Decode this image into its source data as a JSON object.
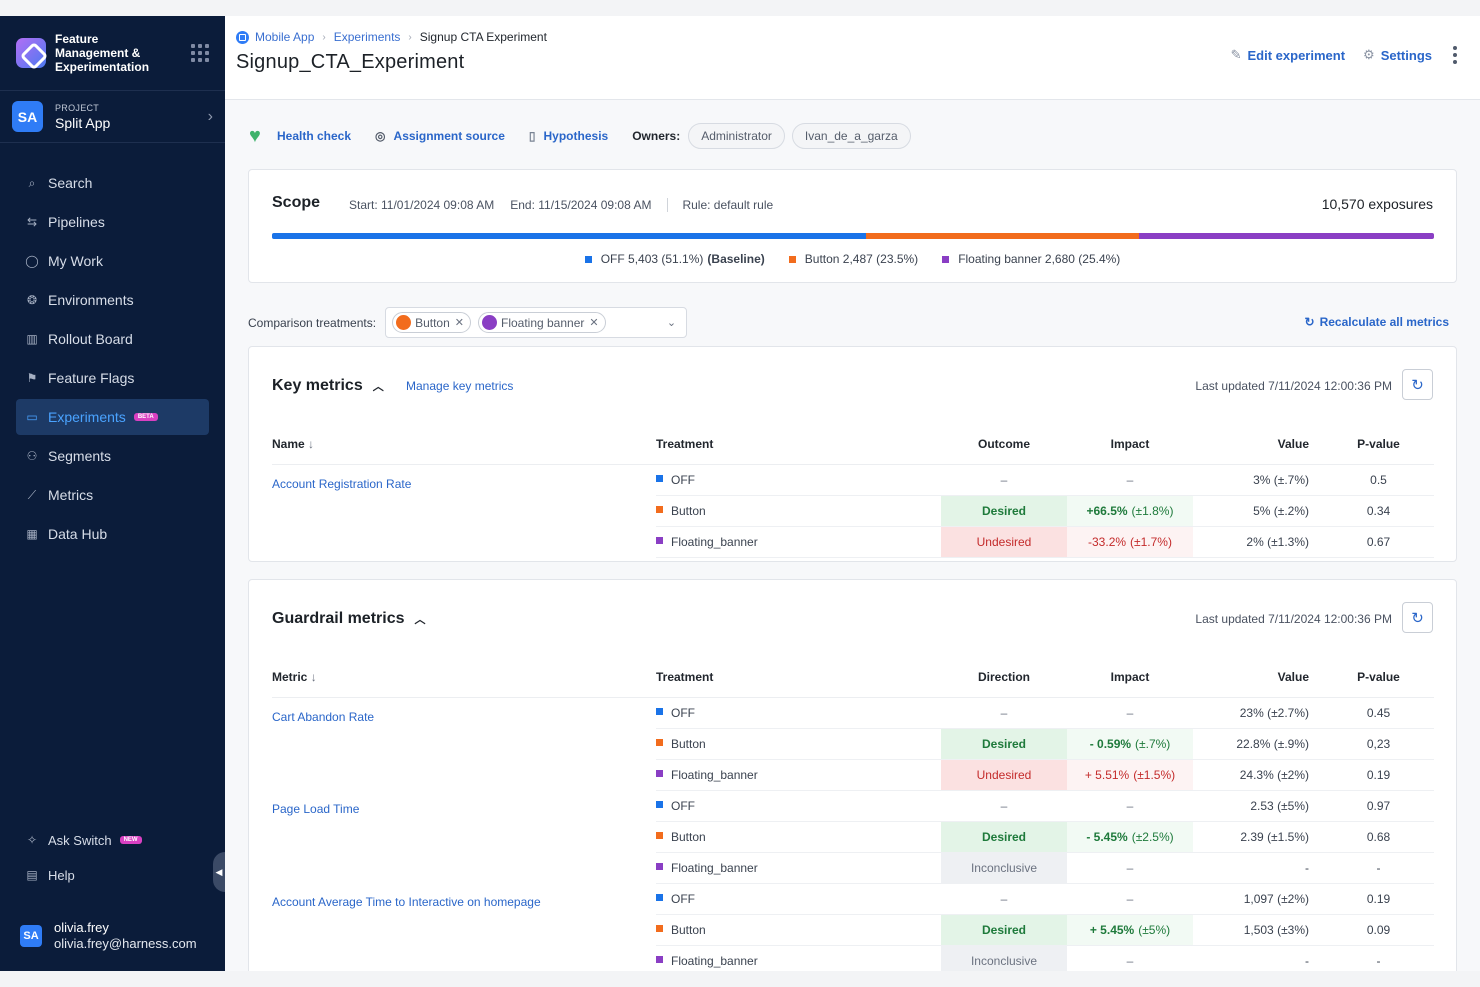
{
  "app": {
    "brand_name": "Feature Management & Experimentation",
    "project_label": "PROJECT",
    "project_avatar": "SA",
    "project_name": "Split App"
  },
  "nav": {
    "items": [
      {
        "label": "Search",
        "icon": "search-icon"
      },
      {
        "label": "Pipelines",
        "icon": "pipelines-icon"
      },
      {
        "label": "My Work",
        "icon": "person-icon"
      },
      {
        "label": "Environments",
        "icon": "environments-icon"
      },
      {
        "label": "Rollout Board",
        "icon": "board-icon"
      },
      {
        "label": "Feature Flags",
        "icon": "flag-icon"
      },
      {
        "label": "Experiments",
        "icon": "experiments-icon",
        "badge": "BETA",
        "active": true
      },
      {
        "label": "Segments",
        "icon": "segments-icon"
      },
      {
        "label": "Metrics",
        "icon": "chart-icon"
      },
      {
        "label": "Data Hub",
        "icon": "datahub-icon"
      }
    ],
    "ask_switch": "Ask Switch",
    "ask_badge": "NEW",
    "help": "Help"
  },
  "user": {
    "avatar": "SA",
    "name": "olivia.frey",
    "email": "olivia.frey@harness.com"
  },
  "breadcrumb": {
    "items": [
      "Mobile App",
      "Experiments",
      "Signup CTA Experiment"
    ]
  },
  "page": {
    "title": "Signup_CTA_Experiment",
    "edit_label": "Edit experiment",
    "settings_label": "Settings"
  },
  "toolbar": {
    "health_check": "Health check",
    "assignment_source": "Assignment source",
    "hypothesis": "Hypothesis",
    "owners_label": "Owners:",
    "owners": [
      "Administrator",
      "Ivan_de_a_garza"
    ]
  },
  "scope": {
    "title": "Scope",
    "start": "Start: 11/01/2024 09:08 AM",
    "end": "End: 11/15/2024 09:08 AM",
    "rule": "Rule: default rule",
    "exposures": "10,570 exposures",
    "segments": [
      {
        "label": "OFF 5,403 (51.1%)",
        "suffix": "(Baseline)",
        "fraction": 0.511,
        "color": "#1a73e8"
      },
      {
        "label": "Button 2,487 (23.5%)",
        "suffix": "",
        "fraction": 0.235,
        "color": "#f26c1d"
      },
      {
        "label": "Floating banner 2,680 (25.4%)",
        "suffix": "",
        "fraction": 0.254,
        "color": "#8a3ec4"
      }
    ]
  },
  "comparison": {
    "label": "Comparison treatments:",
    "chips": [
      {
        "label": "Button",
        "color": "#f26c1d"
      },
      {
        "label": "Floating banner",
        "color": "#8a3ec4"
      }
    ],
    "recalculate": "Recalculate all metrics"
  },
  "colors": {
    "OFF": "#1a73e8",
    "Button": "#f26c1d",
    "Floating_banner": "#8a3ec4"
  },
  "key_metrics": {
    "title": "Key metrics",
    "manage": "Manage key metrics",
    "updated": "Last updated 7/11/2024 12:00:36 PM",
    "columns": [
      "Name",
      "Treatment",
      "Outcome",
      "Impact",
      "Value",
      "P-value"
    ],
    "metrics": [
      {
        "name": "Account Registration Rate",
        "rows": [
          {
            "treatment": "OFF",
            "outcome": "–",
            "outcome_type": "none",
            "impact": "–",
            "impact_ci": "",
            "impact_type": "none",
            "value": "3% (±.7%)",
            "pvalue": "0.5"
          },
          {
            "treatment": "Button",
            "outcome": "Desired",
            "outcome_type": "desired",
            "impact": "+66.5%",
            "impact_ci": "(±1.8%)",
            "impact_type": "pos",
            "value": "5% (±.2%)",
            "pvalue": "0.34"
          },
          {
            "treatment": "Floating_banner",
            "outcome": "Undesired",
            "outcome_type": "undesired",
            "impact": "-33.2%",
            "impact_ci": "(±1.7%)",
            "impact_type": "neg",
            "value": "2% (±1.3%)",
            "pvalue": "0.67"
          }
        ]
      }
    ]
  },
  "guardrail_metrics": {
    "title": "Guardrail metrics",
    "updated": "Last updated 7/11/2024 12:00:36 PM",
    "columns": [
      "Metric",
      "Treatment",
      "Direction",
      "Impact",
      "Value",
      "P-value"
    ],
    "metrics": [
      {
        "name": "Cart Abandon Rate",
        "rows": [
          {
            "treatment": "OFF",
            "outcome": "–",
            "outcome_type": "none",
            "impact": "–",
            "impact_ci": "",
            "impact_type": "none",
            "value": "23% (±2.7%)",
            "pvalue": "0.45"
          },
          {
            "treatment": "Button",
            "outcome": "Desired",
            "outcome_type": "desired",
            "impact": "- 0.59%",
            "impact_ci": "(±.7%)",
            "impact_type": "pos",
            "value": "22.8% (±.9%)",
            "pvalue": "0,23"
          },
          {
            "treatment": "Floating_banner",
            "outcome": "Undesired",
            "outcome_type": "undesired",
            "impact": "+ 5.51%",
            "impact_ci": "(±1.5%)",
            "impact_type": "neg",
            "value": "24.3% (±2%)",
            "pvalue": "0.19"
          }
        ]
      },
      {
        "name": "Page Load Time",
        "rows": [
          {
            "treatment": "OFF",
            "outcome": "–",
            "outcome_type": "none",
            "impact": "–",
            "impact_ci": "",
            "impact_type": "none",
            "value": "2.53 (±5%)",
            "pvalue": "0.97"
          },
          {
            "treatment": "Button",
            "outcome": "Desired",
            "outcome_type": "desired",
            "impact": "- 5.45%",
            "impact_ci": "(±2.5%)",
            "impact_type": "pos",
            "value": "2.39 (±1.5%)",
            "pvalue": "0.68"
          },
          {
            "treatment": "Floating_banner",
            "outcome": "Inconclusive",
            "outcome_type": "inconcl",
            "impact": "–",
            "impact_ci": "",
            "impact_type": "none",
            "value": "-",
            "pvalue": "-"
          }
        ]
      },
      {
        "name": "Account Average Time to Interactive on homepage",
        "rows": [
          {
            "treatment": "OFF",
            "outcome": "–",
            "outcome_type": "none",
            "impact": "–",
            "impact_ci": "",
            "impact_type": "none",
            "value": "1,097 (±2%)",
            "pvalue": "0.19"
          },
          {
            "treatment": "Button",
            "outcome": "Desired",
            "outcome_type": "desired",
            "impact": "+ 5.45%",
            "impact_ci": "(±5%)",
            "impact_type": "pos",
            "value": "1,503 (±3%)",
            "pvalue": "0.09"
          },
          {
            "treatment": "Floating_banner",
            "outcome": "Inconclusive",
            "outcome_type": "inconcl",
            "impact": "–",
            "impact_ci": "",
            "impact_type": "none",
            "value": "-",
            "pvalue": "-"
          }
        ]
      }
    ]
  }
}
